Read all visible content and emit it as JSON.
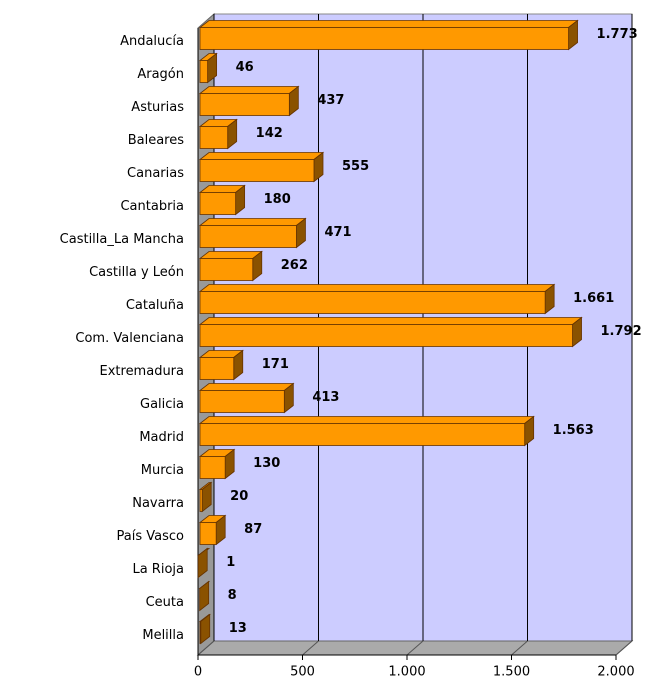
{
  "chart_data": {
    "type": "bar",
    "orientation": "horizontal",
    "categories": [
      "Andalucía",
      "Aragón",
      "Asturias",
      "Baleares",
      "Canarias",
      "Cantabria",
      "Castilla_La Mancha",
      "Castilla y León",
      "Cataluña",
      "Com. Valenciana",
      "Extremadura",
      "Galicia",
      "Madrid",
      "Murcia",
      "Navarra",
      "País Vasco",
      "La Rioja",
      "Ceuta",
      "Melilla"
    ],
    "values": [
      1773,
      46,
      437,
      142,
      555,
      180,
      471,
      262,
      1661,
      1792,
      171,
      413,
      1563,
      130,
      20,
      87,
      1,
      8,
      13
    ],
    "value_labels": [
      "1.773",
      "46",
      "437",
      "142",
      "555",
      "180",
      "471",
      "262",
      "1.661",
      "1.792",
      "171",
      "413",
      "1.563",
      "130",
      "20",
      "87",
      "1",
      "8",
      "13"
    ],
    "color": "#ff9900",
    "side_color": "#8a5200",
    "wall_color": "#ccccff",
    "xlim": [
      0,
      2000
    ],
    "xticks": [
      0,
      500,
      {
        "value": 1000,
        "label": "1.000"
      },
      {
        "value": 1500,
        "label": "1.500"
      },
      {
        "value": 2000,
        "label": "2.000"
      }
    ],
    "grid": true
  }
}
